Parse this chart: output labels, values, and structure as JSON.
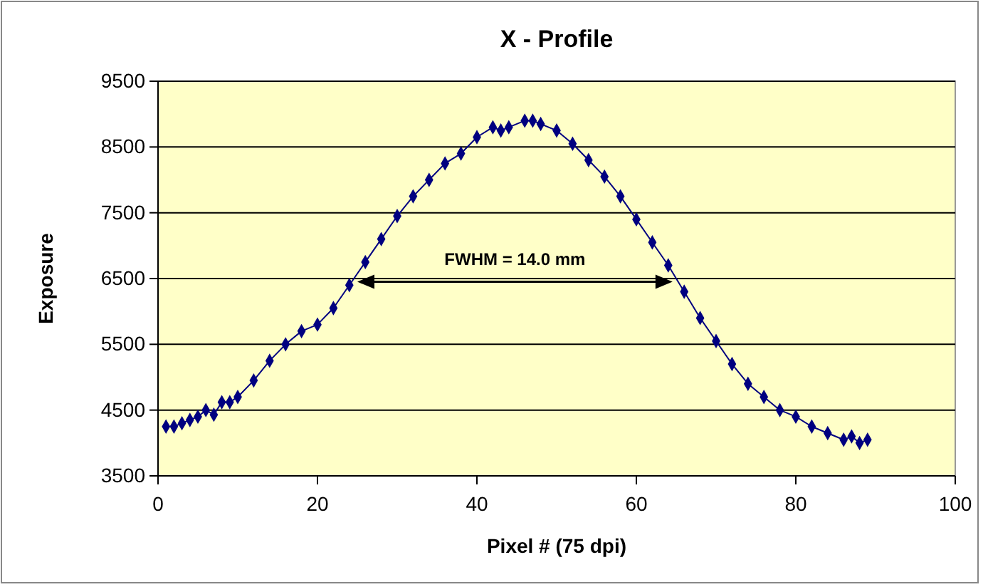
{
  "chart_data": {
    "type": "line",
    "title": "X - Profile",
    "xlabel": "Pixel #  (75 dpi)",
    "ylabel": "Exposure",
    "x": [
      1,
      2,
      3,
      4,
      5,
      6,
      7,
      8,
      9,
      10,
      12,
      14,
      16,
      18,
      20,
      22,
      24,
      26,
      28,
      30,
      32,
      34,
      36,
      38,
      40,
      42,
      43,
      44,
      46,
      47,
      48,
      50,
      52,
      54,
      56,
      58,
      60,
      62,
      64,
      66,
      68,
      70,
      72,
      74,
      76,
      78,
      80,
      82,
      84,
      86,
      87,
      88,
      89
    ],
    "series": [
      {
        "color": "#000080",
        "values": [
          4250,
          4250,
          4300,
          4350,
          4400,
          4500,
          4430,
          4620,
          4620,
          4700,
          4950,
          5250,
          5500,
          5700,
          5800,
          6050,
          6400,
          6750,
          7100,
          7450,
          7750,
          8000,
          8250,
          8400,
          8650,
          8800,
          8750,
          8800,
          8900,
          8900,
          8850,
          8750,
          8550,
          8300,
          8050,
          7750,
          7400,
          7050,
          6700,
          6300,
          5900,
          5550,
          5200,
          4900,
          4700,
          4500,
          4400,
          4250,
          4150,
          4050,
          4100,
          4000,
          4050
        ]
      }
    ],
    "xlim": [
      0,
      100
    ],
    "xticks": [
      0,
      20,
      40,
      60,
      80,
      100
    ],
    "ylim": [
      3500,
      9500
    ],
    "yticks": [
      3500,
      4500,
      5500,
      6500,
      7500,
      8500,
      9500
    ],
    "grid": "y",
    "marker": "diamond",
    "line_style": "solid",
    "annotations": [
      "FWHM = 14.0 mm"
    ]
  }
}
